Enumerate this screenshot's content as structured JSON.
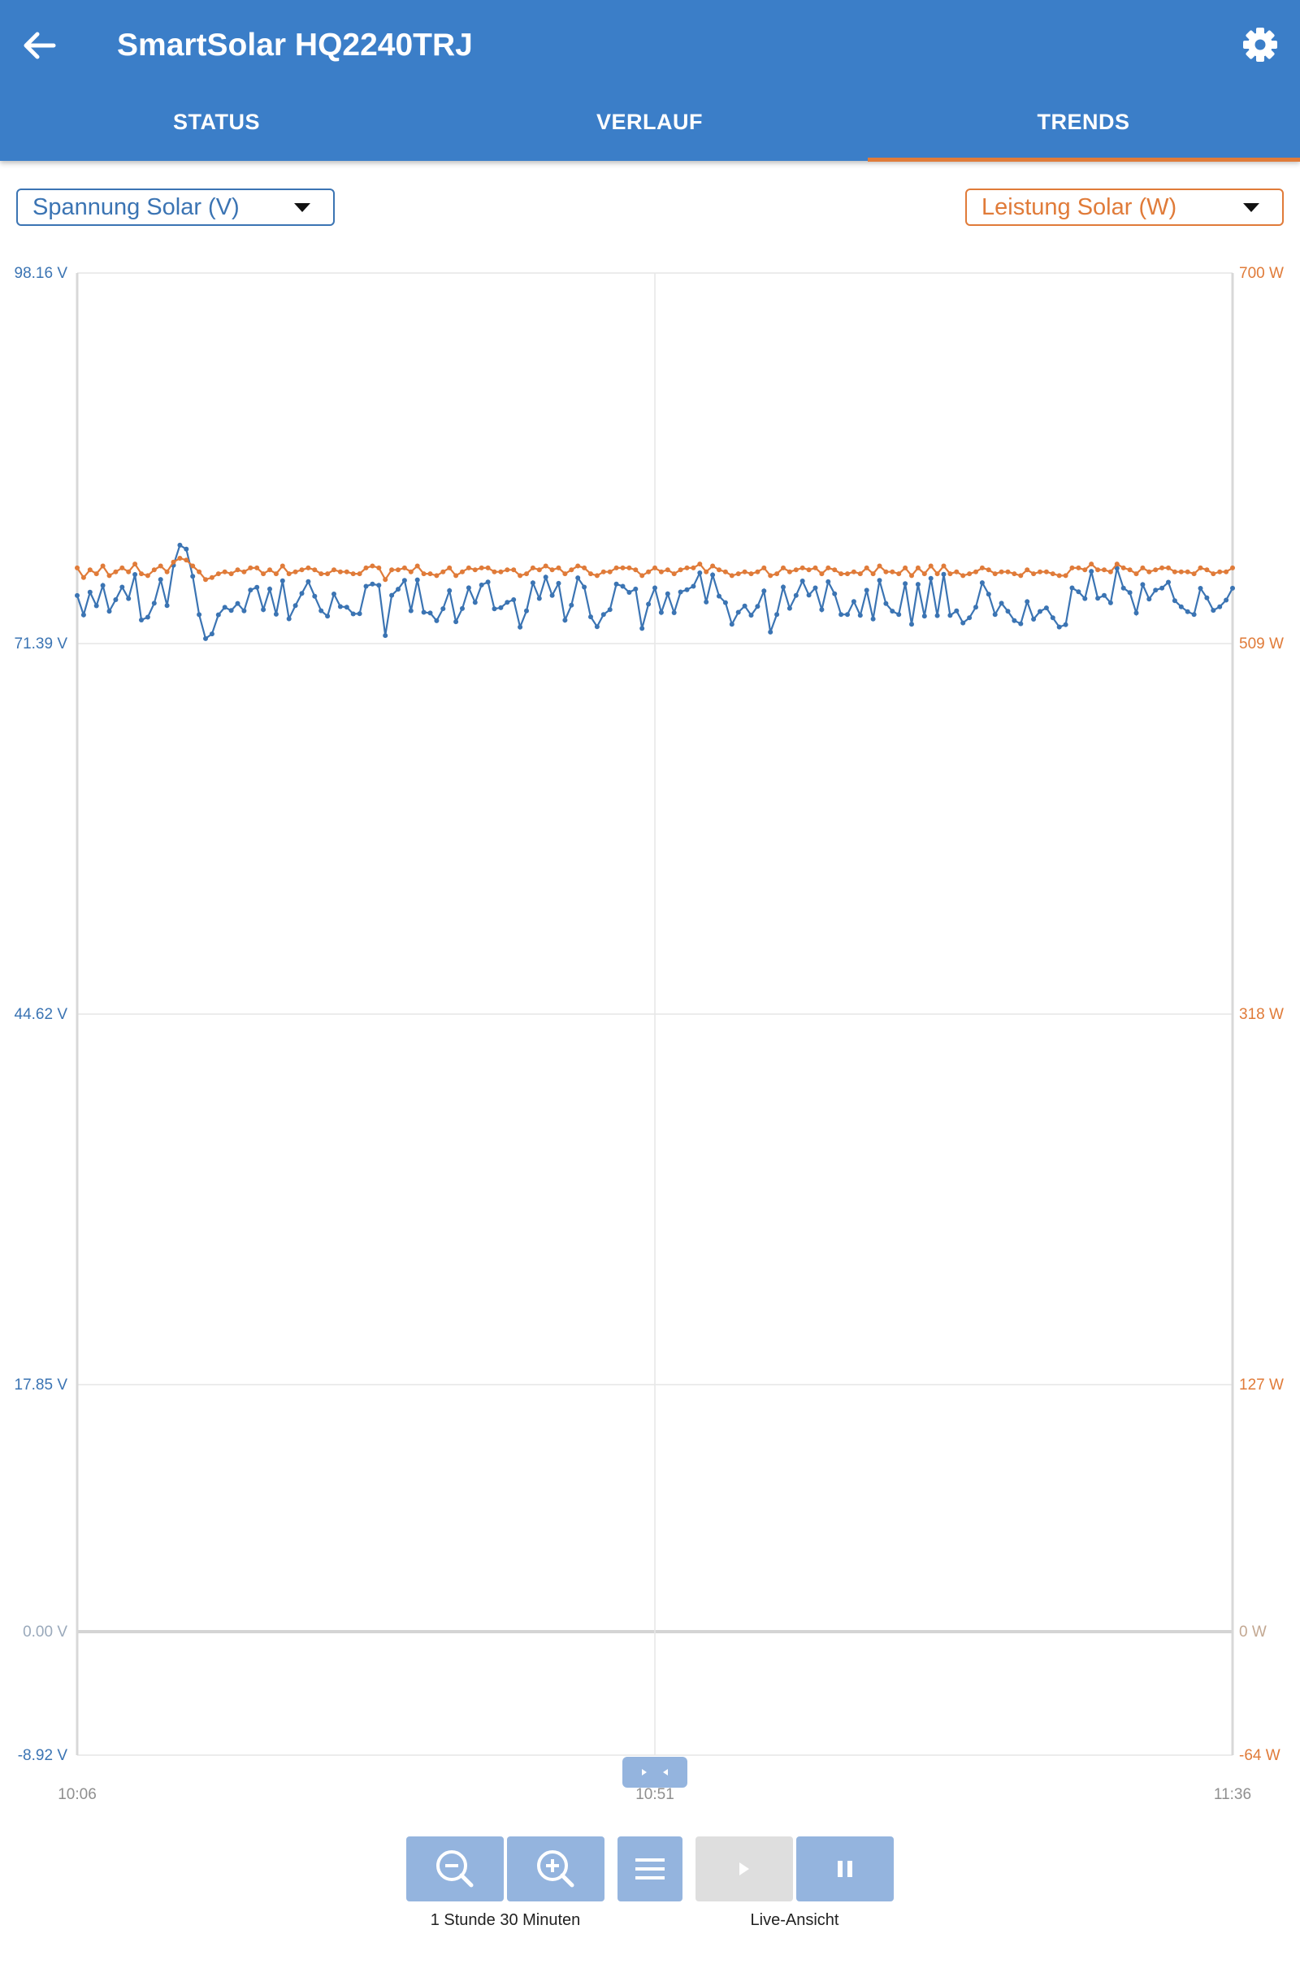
{
  "header": {
    "title": "SmartSolar HQ2240TRJ",
    "back_icon": "arrow-left-icon",
    "settings_icon": "gear-icon",
    "colors": {
      "appbar": "#3b7ec8",
      "tab_indicator": "#e07b39"
    }
  },
  "tabs": [
    {
      "label": "STATUS",
      "active": false
    },
    {
      "label": "VERLAUF",
      "active": false
    },
    {
      "label": "TRENDS",
      "active": true
    }
  ],
  "selectors": {
    "left": {
      "value": "Spannung Solar (V)",
      "color": "#3b74b3"
    },
    "right": {
      "value": "Leistung Solar (W)",
      "color": "#e07b39"
    }
  },
  "chart_data": {
    "type": "line",
    "x_ticks": [
      "10:06",
      "10:51",
      "11:36"
    ],
    "xlim_minutes": [
      0,
      90
    ],
    "grid": true,
    "left_axis": {
      "ticks": [
        "98.16 V",
        "71.39 V",
        "44.62 V",
        "17.85 V",
        "0.00 V",
        "-8.92 V"
      ],
      "ylim": [
        -8.92,
        98.16
      ],
      "unit": "V"
    },
    "right_axis": {
      "ticks": [
        "700 W",
        "509 W",
        "318 W",
        "127 W",
        "0 W",
        "-64 W"
      ],
      "ylim": [
        -64,
        700
      ],
      "unit": "W"
    },
    "series": [
      {
        "name": "Spannung Solar (V)",
        "axis": "left",
        "color": "#3b74b3",
        "x": [
          0,
          0.5,
          1,
          1.5,
          2,
          2.5,
          3,
          3.5,
          4,
          4.5,
          5,
          5.5,
          6,
          6.5,
          7,
          7.5,
          8,
          8.5,
          9,
          9.5,
          10,
          10.5,
          11,
          11.5,
          12,
          12.5,
          13,
          13.5,
          14,
          14.5,
          15,
          15.5,
          16,
          16.5,
          17,
          17.5,
          18,
          18.5,
          19,
          19.5,
          20,
          20.5,
          21,
          21.5,
          22,
          22.5,
          23,
          23.5,
          24,
          24.5,
          25,
          25.5,
          26,
          26.5,
          27,
          27.5,
          28,
          28.5,
          29,
          29.5,
          30,
          30.5,
          31,
          31.5,
          32,
          32.5,
          33,
          33.5,
          34,
          34.5,
          35,
          35.5,
          36,
          36.5,
          37,
          37.5,
          38,
          38.5,
          39,
          39.5,
          40,
          40.5,
          41,
          41.5,
          42,
          42.5,
          43,
          43.5,
          44,
          44.5,
          45,
          45.5,
          46,
          46.5,
          47,
          47.5,
          48,
          48.5,
          49,
          49.5,
          50,
          50.5,
          51,
          51.5,
          52,
          52.5,
          53,
          53.5,
          54,
          54.5,
          55,
          55.5,
          56,
          56.5,
          57,
          57.5,
          58,
          58.5,
          59,
          59.5,
          60,
          60.5,
          61,
          61.5,
          62,
          62.5,
          63,
          63.5,
          64,
          64.5,
          65,
          65.5,
          66,
          66.5,
          67,
          67.5,
          68,
          68.5,
          69,
          69.5,
          70,
          70.5,
          71,
          71.5,
          72,
          72.5,
          73,
          73.5,
          74,
          74.5,
          75,
          75.5,
          76,
          76.5,
          77,
          77.5,
          78,
          78.5,
          79,
          79.5,
          80,
          80.5,
          81,
          81.5,
          82,
          82.5,
          83,
          83.5,
          84,
          84.5,
          85,
          85.5,
          86,
          86.5,
          87,
          87.5,
          88,
          88.5,
          89,
          89.5,
          90
        ],
        "y": [
          74.86,
          73.46,
          75.1,
          74.12,
          75.59,
          73.72,
          74.56,
          75.47,
          74.64,
          76.38,
          73.09,
          73.3,
          74.3,
          76.02,
          74.13,
          77.05,
          78.5,
          78.21,
          76.25,
          73.48,
          71.75,
          72.09,
          73.47,
          74.01,
          73.78,
          74.29,
          73.75,
          75.26,
          75.45,
          73.84,
          75.33,
          73.51,
          75.92,
          73.18,
          74.13,
          75.02,
          75.87,
          74.81,
          73.76,
          73.37,
          74.97,
          74.06,
          74.02,
          73.53,
          73.55,
          75.53,
          75.69,
          75.6,
          71.97,
          74.88,
          75.32,
          75.95,
          73.76,
          75.99,
          73.65,
          73.6,
          73.04,
          73.91,
          75.21,
          72.97,
          73.92,
          75.42,
          74.36,
          75.62,
          75.84,
          73.9,
          73.98,
          74.37,
          74.56,
          72.58,
          73.75,
          75.78,
          74.65,
          76.19,
          74.87,
          75.74,
          73.08,
          74.16,
          76.14,
          75.47,
          73.32,
          72.61,
          73.49,
          73.84,
          75.69,
          75.53,
          75.09,
          75.33,
          72.48,
          74.24,
          75.41,
          73.63,
          74.98,
          73.62,
          75.12,
          75.28,
          75.53,
          76.5,
          74.39,
          76.35,
          74.82,
          74.35,
          72.78,
          73.65,
          74.1,
          73.44,
          74.08,
          75.19,
          72.22,
          73.49,
          75.47,
          73.94,
          74.87,
          75.91,
          74.89,
          75.41,
          73.84,
          75.86,
          74.98,
          73.49,
          73.49,
          74.43,
          73.43,
          75.24,
          73.17,
          75.95,
          74.28,
          73.73,
          73.49,
          75.72,
          72.78,
          75.67,
          73.37,
          76.1,
          73.41,
          76.4,
          73.42,
          73.75,
          72.88,
          73.25,
          74.02,
          75.79,
          74.96,
          73.49,
          74.3,
          73.72,
          73.05,
          72.82,
          74.42,
          73.15,
          73.71,
          73.97,
          73.25,
          72.59,
          72.75,
          75.41,
          75.13,
          74.64,
          76.61,
          74.66,
          74.87,
          74.33,
          76.83,
          75.4,
          75.07,
          73.6,
          75.65,
          74.61,
          75.25,
          75.4,
          75.82,
          74.49,
          74.05,
          73.7,
          73.49,
          75.38,
          74.69,
          73.79,
          74.05,
          74.53,
          75.39
        ]
      },
      {
        "name": "Leistung Solar (W)",
        "axis": "right",
        "color": "#e07b39",
        "x": [
          0,
          0.5,
          1,
          1.5,
          2,
          2.5,
          3,
          3.5,
          4,
          4.5,
          5,
          5.5,
          6,
          6.5,
          7,
          7.5,
          8,
          8.5,
          9,
          9.5,
          10,
          10.5,
          11,
          11.5,
          12,
          12.5,
          13,
          13.5,
          14,
          14.5,
          15,
          15.5,
          16,
          16.5,
          17,
          17.5,
          18,
          18.5,
          19,
          19.5,
          20,
          20.5,
          21,
          21.5,
          22,
          22.5,
          23,
          23.5,
          24,
          24.5,
          25,
          25.5,
          26,
          26.5,
          27,
          27.5,
          28,
          28.5,
          29,
          29.5,
          30,
          30.5,
          31,
          31.5,
          32,
          32.5,
          33,
          33.5,
          34,
          34.5,
          35,
          35.5,
          36,
          36.5,
          37,
          37.5,
          38,
          38.5,
          39,
          39.5,
          40,
          40.5,
          41,
          41.5,
          42,
          42.5,
          43,
          43.5,
          44,
          44.5,
          45,
          45.5,
          46,
          46.5,
          47,
          47.5,
          48,
          48.5,
          49,
          49.5,
          50,
          50.5,
          51,
          51.5,
          52,
          52.5,
          53,
          53.5,
          54,
          54.5,
          55,
          55.5,
          56,
          56.5,
          57,
          57.5,
          58,
          58.5,
          59,
          59.5,
          60,
          60.5,
          61,
          61.5,
          62,
          62.5,
          63,
          63.5,
          64,
          64.5,
          65,
          65.5,
          66,
          66.5,
          67,
          67.5,
          68,
          68.5,
          69,
          69.5,
          70,
          70.5,
          71,
          71.5,
          72,
          72.5,
          73,
          73.5,
          74,
          74.5,
          75,
          75.5,
          76,
          76.5,
          77,
          77.5,
          78,
          78.5,
          79,
          79.5,
          80,
          80.5,
          81,
          81.5,
          82,
          82.5,
          83,
          83.5,
          84,
          84.5,
          85,
          85.5,
          86,
          86.5,
          87,
          87.5,
          88,
          88.5,
          89,
          89.5,
          90
        ],
        "y": [
          548,
          543,
          547,
          545,
          549,
          544,
          546,
          548,
          546,
          550,
          545,
          544,
          547,
          549,
          546,
          551,
          553,
          552,
          549,
          546,
          542,
          543,
          545,
          546,
          545,
          547,
          546,
          548,
          548,
          545,
          547,
          545,
          549,
          545,
          546,
          547,
          548,
          547,
          545,
          545,
          547,
          546,
          546,
          545,
          545,
          548,
          549,
          548,
          542,
          547,
          547,
          548,
          546,
          549,
          545,
          545,
          544,
          546,
          548,
          544,
          546,
          548,
          547,
          548,
          548,
          546,
          546,
          547,
          547,
          544,
          545,
          548,
          547,
          549,
          547,
          548,
          545,
          547,
          549,
          548,
          545,
          544,
          546,
          546,
          548,
          548,
          548,
          547,
          544,
          546,
          548,
          546,
          547,
          545,
          547,
          548,
          548,
          550,
          546,
          549,
          547,
          546,
          544,
          545,
          546,
          545,
          546,
          548,
          544,
          545,
          548,
          546,
          547,
          548,
          547,
          548,
          545,
          548,
          547,
          545,
          545,
          546,
          545,
          548,
          545,
          549,
          546,
          546,
          545,
          548,
          544,
          548,
          545,
          549,
          545,
          549,
          545,
          546,
          544,
          545,
          546,
          548,
          547,
          545,
          546,
          546,
          545,
          544,
          547,
          545,
          546,
          546,
          545,
          544,
          544,
          548,
          548,
          547,
          550,
          547,
          547,
          546,
          550,
          548,
          547,
          545,
          548,
          546,
          547,
          548,
          548,
          546,
          546,
          546,
          545,
          548,
          547,
          545,
          546,
          546,
          548
        ]
      }
    ]
  },
  "controls": {
    "zoom_out_icon": "zoom-out-icon",
    "zoom_in_icon": "zoom-in-icon",
    "menu_icon": "hamburger-menu-icon",
    "play_icon": "play-icon",
    "pause_icon": "pause-icon",
    "range_label": "1 Stunde 30 Minuten",
    "live_label": "Live-Ansicht",
    "pan_handle_icon": "pan-handle-icon"
  }
}
